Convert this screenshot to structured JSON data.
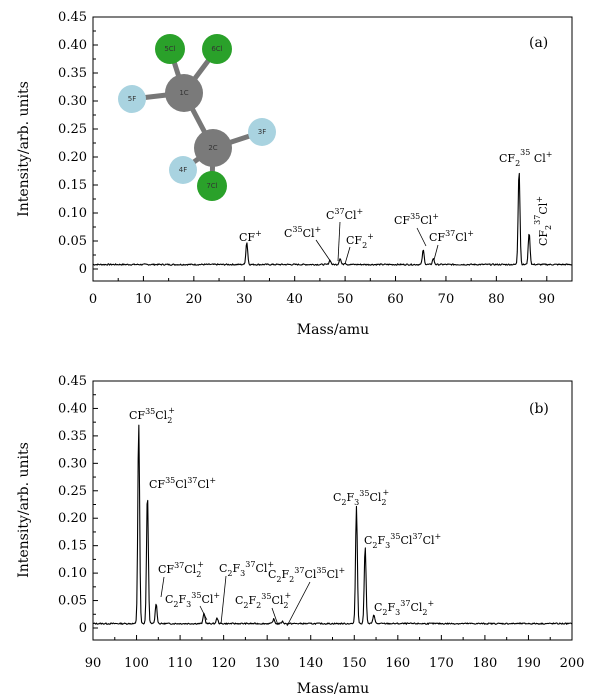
{
  "chart_data": [
    {
      "panel_label": "(a)",
      "type": "line",
      "xlabel": "Mass/amu",
      "ylabel": "Intensity/arb. units",
      "xlim": [
        0,
        95
      ],
      "ylim": [
        0,
        0.45
      ],
      "x_ticks": [
        0,
        10,
        20,
        30,
        40,
        50,
        60,
        70,
        80,
        90
      ],
      "y_ticks": [
        "0",
        "0.05",
        "0.10",
        "0.15",
        "0.20",
        "0.25",
        "0.30",
        "0.35",
        "0.40",
        "0.45"
      ],
      "baseline": 0.008,
      "peaks": [
        {
          "x": 30.5,
          "y": 0.048
        },
        {
          "x": 47.0,
          "y": 0.016
        },
        {
          "x": 49.0,
          "y": 0.019
        },
        {
          "x": 50.0,
          "y": 0.011
        },
        {
          "x": 65.5,
          "y": 0.034
        },
        {
          "x": 67.5,
          "y": 0.019
        },
        {
          "x": 84.5,
          "y": 0.178
        },
        {
          "x": 86.5,
          "y": 0.065
        }
      ],
      "annotations": [
        {
          "text": "CF+"
        },
        {
          "text": "C35Cl+"
        },
        {
          "text": "C37Cl+"
        },
        {
          "text": "CF2+"
        },
        {
          "text": "CF35Cl+"
        },
        {
          "text": "CF37Cl+"
        },
        {
          "text": "CF235Cl+"
        },
        {
          "text": "CF237Cl+"
        }
      ],
      "inset_atoms": [
        {
          "label": "5Cl",
          "color": "green"
        },
        {
          "label": "6Cl",
          "color": "green"
        },
        {
          "label": "1C",
          "color": "gray"
        },
        {
          "label": "5F",
          "color": "lightblue"
        },
        {
          "label": "2C",
          "color": "gray"
        },
        {
          "label": "3F",
          "color": "lightblue"
        },
        {
          "label": "4F",
          "color": "lightblue"
        },
        {
          "label": "7Cl",
          "color": "green"
        }
      ]
    },
    {
      "panel_label": "(b)",
      "type": "line",
      "xlabel": "Mass/amu",
      "ylabel": "Intensity/arb. units",
      "xlim": [
        90,
        200
      ],
      "ylim": [
        0,
        0.45
      ],
      "x_ticks": [
        90,
        100,
        110,
        120,
        130,
        140,
        150,
        160,
        170,
        180,
        190,
        200
      ],
      "y_ticks": [
        "0",
        "0.05",
        "0.10",
        "0.15",
        "0.20",
        "0.25",
        "0.30",
        "0.35",
        "0.40",
        "0.45"
      ],
      "baseline": 0.008,
      "peaks": [
        {
          "x": 100.5,
          "y": 0.373
        },
        {
          "x": 102.5,
          "y": 0.245
        },
        {
          "x": 104.5,
          "y": 0.045
        },
        {
          "x": 115.5,
          "y": 0.027
        },
        {
          "x": 118.5,
          "y": 0.018
        },
        {
          "x": 131.5,
          "y": 0.016
        },
        {
          "x": 133.5,
          "y": 0.012
        },
        {
          "x": 150.5,
          "y": 0.222
        },
        {
          "x": 152.5,
          "y": 0.15
        },
        {
          "x": 154.5,
          "y": 0.025
        }
      ],
      "annotations": [
        {
          "text": "CF35Cl2+"
        },
        {
          "text": "CF35Cl37Cl+"
        },
        {
          "text": "CF37Cl2+"
        },
        {
          "text": "C2F335Cl+"
        },
        {
          "text": "C2F337Cl+"
        },
        {
          "text": "C2F235Cl2+"
        },
        {
          "text": "C2F237Cl35Cl+"
        },
        {
          "text": "C2F335Cl2+"
        },
        {
          "text": "C2F335Cl37Cl+"
        },
        {
          "text": "C2F337Cl2+"
        }
      ]
    }
  ]
}
